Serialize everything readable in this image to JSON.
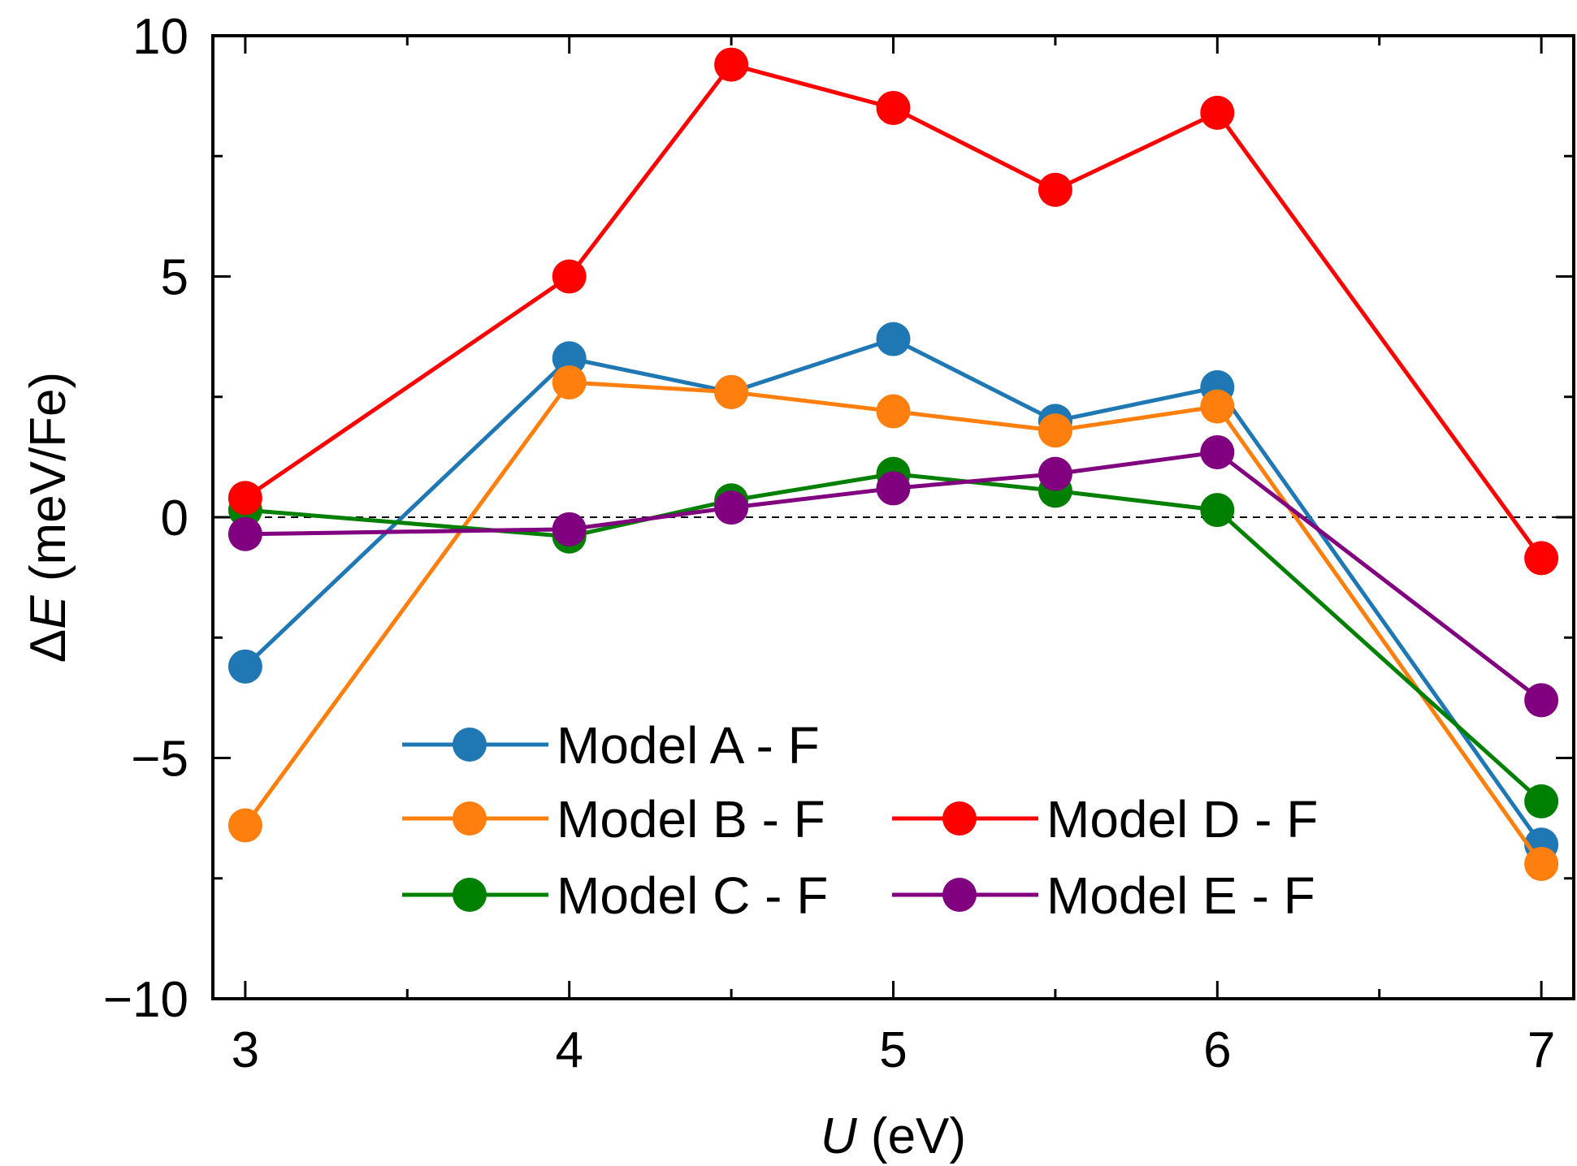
{
  "chart_data": {
    "type": "line",
    "title": "",
    "xlabel": {
      "var": "U",
      "unit": " (eV)"
    },
    "ylabel": {
      "prefix": "Δ",
      "var": "E",
      "unit": " (meV/Fe)"
    },
    "xlim": [
      2.9,
      7.1
    ],
    "ylim": [
      -10,
      10
    ],
    "xticks": [
      3,
      4,
      5,
      6,
      7
    ],
    "xtick_labels": [
      "3",
      "4",
      "5",
      "6",
      "7"
    ],
    "yticks": [
      -10,
      -5,
      0,
      5,
      10
    ],
    "ytick_labels": [
      "−10",
      "−5",
      "0",
      "5",
      "10"
    ],
    "zero_line": true,
    "x": [
      3,
      4,
      4.5,
      5,
      5.5,
      6,
      7
    ],
    "series": [
      {
        "name": "Model A - F",
        "color": "#1f77b4",
        "values": [
          -3.1,
          3.3,
          2.6,
          3.7,
          2.0,
          2.7,
          -6.8
        ]
      },
      {
        "name": "Model B - F",
        "color": "#ff7f0e",
        "values": [
          -6.4,
          2.8,
          2.6,
          2.2,
          1.8,
          2.3,
          -7.2
        ]
      },
      {
        "name": "Model C - F",
        "color": "#008000",
        "values": [
          0.15,
          -0.4,
          0.35,
          0.9,
          0.55,
          0.15,
          -5.9
        ]
      },
      {
        "name": "Model D - F",
        "color": "#ff0000",
        "values": [
          0.4,
          5.0,
          9.4,
          8.5,
          6.8,
          8.4,
          -0.85
        ]
      },
      {
        "name": "Model E - F",
        "color": "#800080",
        "values": [
          -0.35,
          -0.25,
          0.2,
          0.6,
          0.9,
          1.35,
          -3.8
        ]
      }
    ],
    "legend": {
      "position": "lower-left",
      "columns": 2
    }
  }
}
